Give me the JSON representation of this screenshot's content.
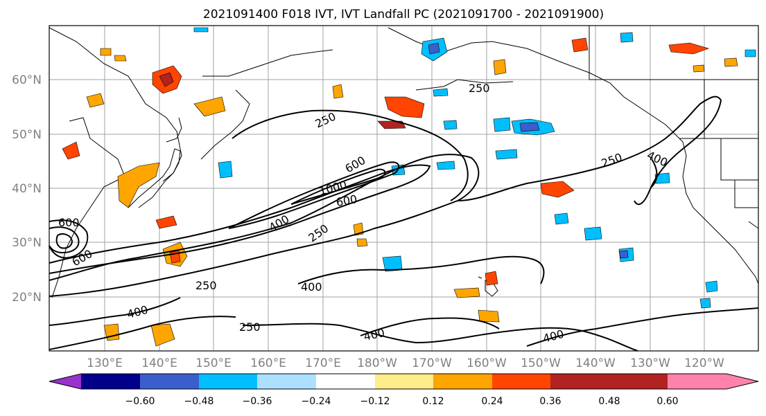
{
  "title": "2021091400 F018 IVT, IVT Landfall PC (2021091700 - 2021091900)",
  "map": {
    "lat_labels": [
      "60°N",
      "50°N",
      "40°N",
      "30°N",
      "20°N"
    ],
    "lon_labels": [
      "130°E",
      "140°E",
      "150°E",
      "160°E",
      "170°E",
      "180°W",
      "170°W",
      "160°W",
      "150°W",
      "140°W",
      "130°W",
      "120°W"
    ],
    "contour_levels": [
      250,
      400,
      600,
      1000
    ],
    "contour_labels": [
      "250",
      "250",
      "250",
      "250",
      "250",
      "250",
      "400",
      "400",
      "400",
      "400",
      "400",
      "400",
      "600",
      "600",
      "600",
      "600",
      "1000"
    ]
  },
  "colorbar": {
    "ticks": [
      "−0.60",
      "−0.48",
      "−0.36",
      "−0.24",
      "−0.12",
      "0.12",
      "0.24",
      "0.36",
      "0.48",
      "0.60"
    ],
    "colors": [
      "#9932CC",
      "#00008B",
      "#3A5FCD",
      "#00BFFF",
      "#ADDFFF",
      "#FFFFFF",
      "#FFEC8B",
      "#FFA500",
      "#FF4500",
      "#B22222",
      "#FF82AB"
    ]
  }
}
